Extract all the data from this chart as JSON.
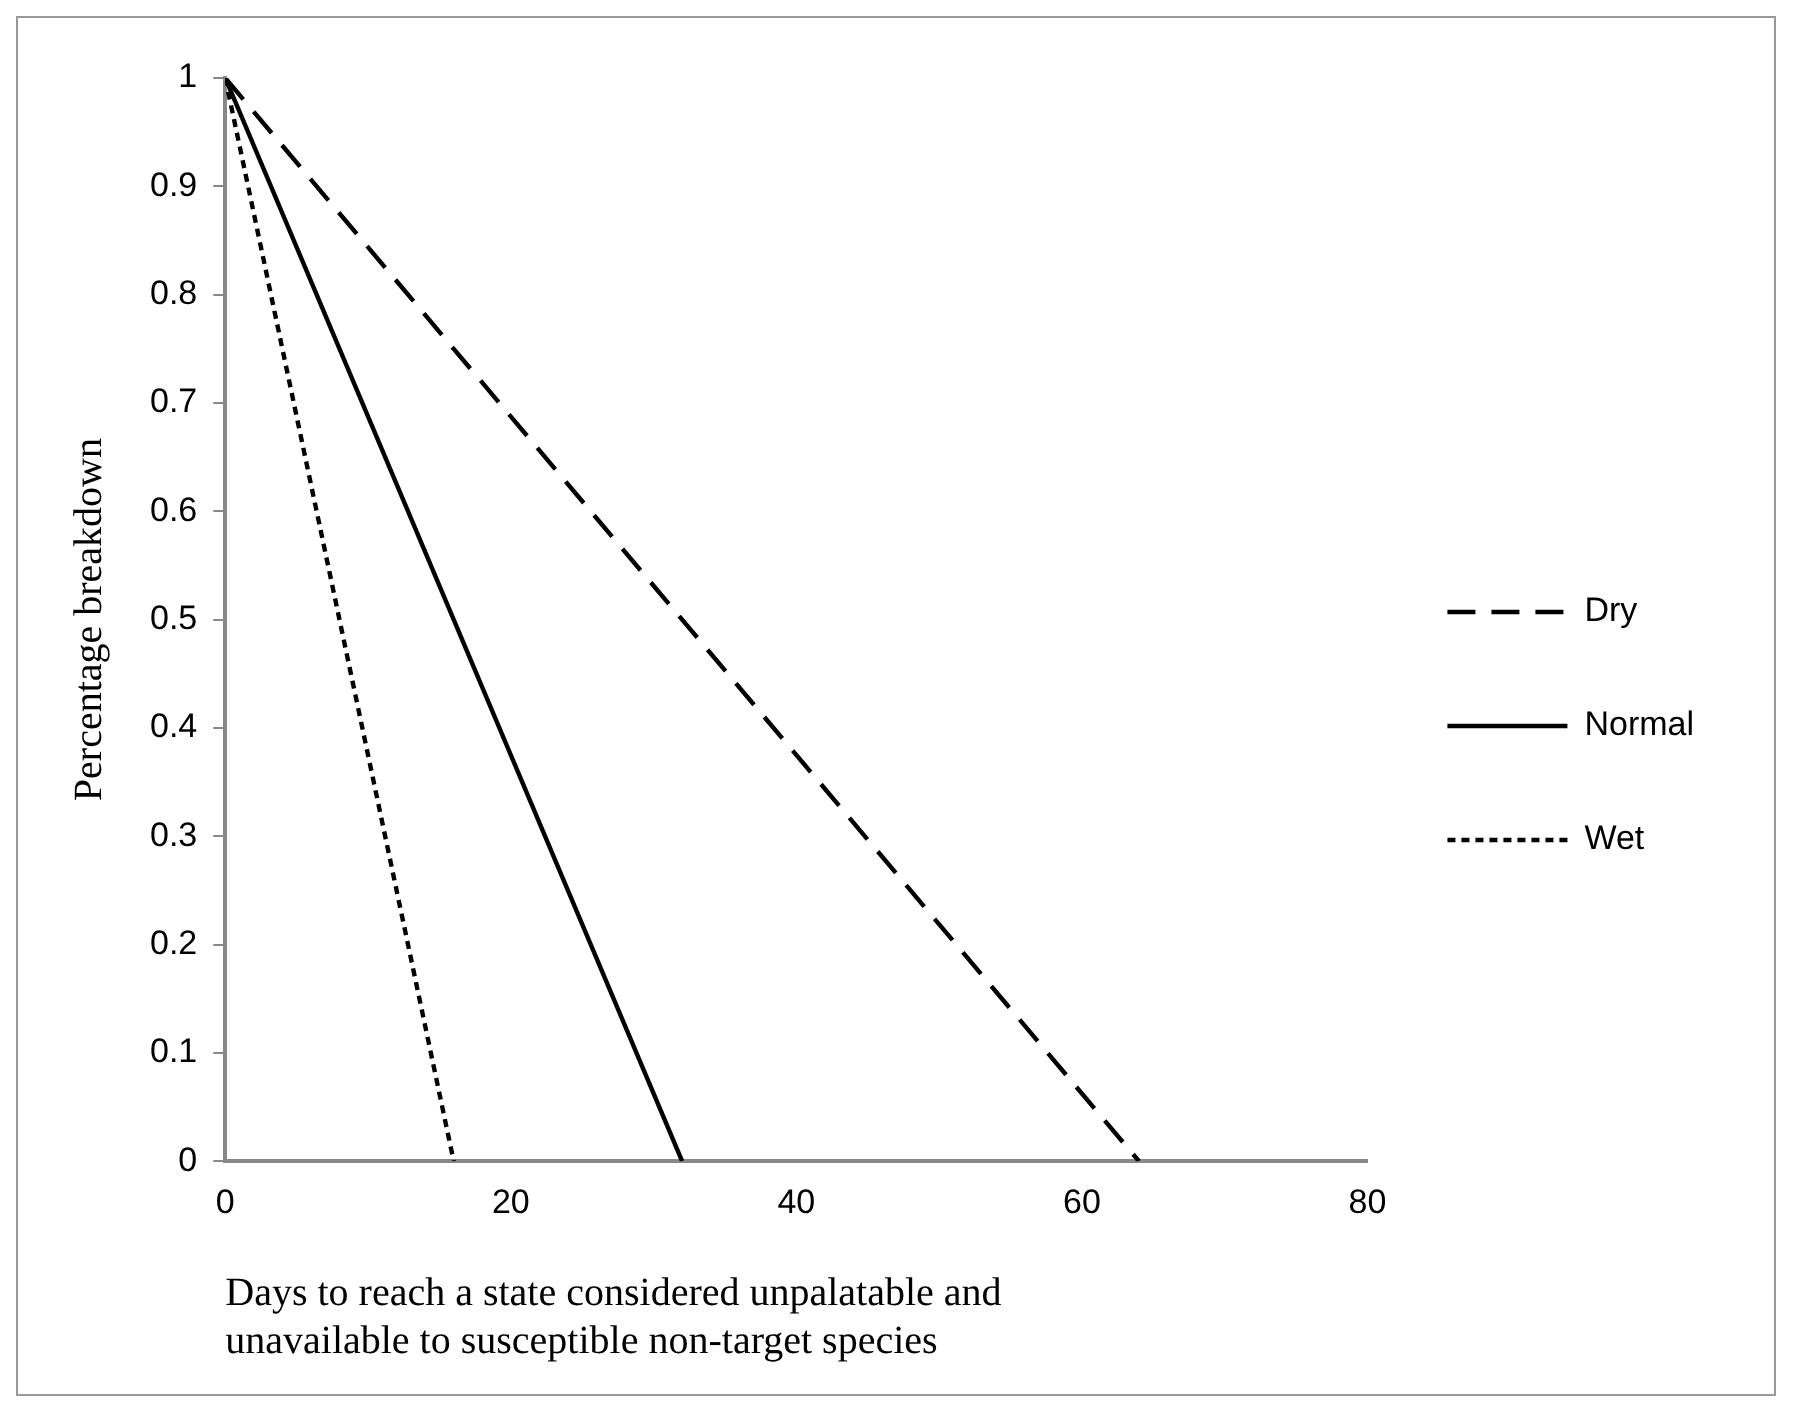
{
  "chart_data": {
    "type": "line",
    "xlabel": "Days to reach a state considered unpalatable and unavailable to susceptible non-target species",
    "ylabel": "Percentage breakdown",
    "series": [
      {
        "name": "Dry",
        "color": "#000000",
        "line_style": "dashed",
        "x": [
          0,
          64
        ],
        "values": [
          1,
          0
        ]
      },
      {
        "name": "Normal",
        "color": "#000000",
        "line_style": "solid",
        "x": [
          0,
          32
        ],
        "values": [
          1,
          0
        ]
      },
      {
        "name": "Wet",
        "color": "#000000",
        "line_style": "dotted",
        "x": [
          0,
          16
        ],
        "values": [
          1,
          0
        ]
      }
    ],
    "xlim": [
      0,
      80
    ],
    "xticks": [
      0,
      20,
      40,
      60,
      80
    ],
    "ylim": [
      0,
      1
    ],
    "yticks": [
      0,
      0.1,
      0.2,
      0.3,
      0.4,
      0.5,
      0.6,
      0.7,
      0.8,
      0.9,
      1
    ],
    "grid": false,
    "legend": "right",
    "marker": "none"
  }
}
